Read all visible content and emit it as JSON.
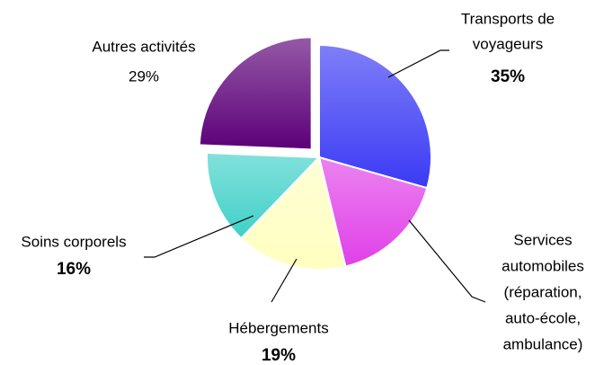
{
  "chart_data": {
    "type": "pie",
    "categories": [
      [
        "Transports de",
        "voyageurs"
      ],
      [
        "Services",
        "automobiles",
        "(réparation,",
        "auto-école,",
        "ambulance)"
      ],
      [
        "Hébergements"
      ],
      [
        "Soins corporels"
      ],
      [
        "Autres activités"
      ]
    ],
    "values": [
      35,
      20,
      19,
      16,
      29
    ],
    "value_labels": [
      "35%",
      null,
      "19%",
      "16%",
      "29%"
    ],
    "colors": [
      "#3a3af5",
      "#e040e8",
      "#ffffc0",
      "#40d0c8",
      "#5c0078"
    ],
    "explode": [
      false,
      false,
      false,
      false,
      true
    ]
  }
}
